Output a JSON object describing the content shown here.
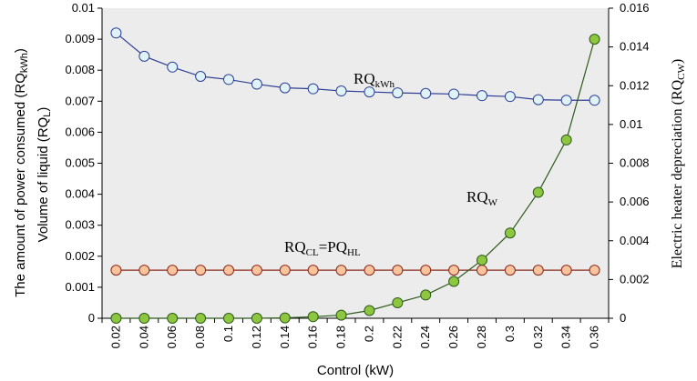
{
  "chart_data": {
    "type": "line",
    "xlabel": "Control (kW)",
    "y_left_label_part1": "The  amount  of  power  consumed  ",
    "y_left_label_part2": "(RQ",
    "y_left_label_sub": "kWh",
    "y_left_label_part3": ")",
    "y_left2_label_part1": "Volume of liquid (RQ",
    "y_left2_label_sub": "L",
    "y_left2_label_part2": ")",
    "y_right_label_part1": "Electric heater depreciation (RQ",
    "y_right_label_sub": "CW",
    "y_right_label_part2": ")",
    "x_ticks": [
      "0.02",
      "0.04",
      "0.06",
      "0.08",
      "0.1",
      "0.12",
      "0.14",
      "0.16",
      "0.18",
      "0.2",
      "0.22",
      "0.24",
      "0.26",
      "0.28",
      "0.3",
      "0.32",
      "0.34",
      "0.36"
    ],
    "x": [
      0.02,
      0.04,
      0.06,
      0.08,
      0.1,
      0.12,
      0.14,
      0.16,
      0.18,
      0.2,
      0.22,
      0.24,
      0.26,
      0.28,
      0.3,
      0.32,
      0.34,
      0.36
    ],
    "ylim_left": [
      0,
      0.01
    ],
    "yticks_left": [
      "0",
      "0.001",
      "0.002",
      "0.003",
      "0.004",
      "0.005",
      "0.006",
      "0.007",
      "0.008",
      "0.009",
      "0.01"
    ],
    "ylim_right": [
      0,
      0.016
    ],
    "yticks_right": [
      "0",
      "0.002",
      "0.004",
      "0.006",
      "0.008",
      "0.01",
      "0.012",
      "0.014",
      "0.016"
    ],
    "grid": false,
    "background": "#ececec",
    "series": [
      {
        "label_main": "RQ",
        "label_sub": "kWh",
        "axis": "left",
        "line_color": "#2e3f95",
        "marker_fill": "#dff3f6",
        "values": [
          0.0092,
          0.00845,
          0.0081,
          0.0078,
          0.0077,
          0.00755,
          0.00743,
          0.0074,
          0.00733,
          0.0073,
          0.00727,
          0.00725,
          0.00723,
          0.00718,
          0.00715,
          0.00705,
          0.00703,
          0.00703
        ]
      },
      {
        "label_main": "RQ",
        "label_sub": "CL",
        "label_mid": "=PQ",
        "label_sub2": "HL",
        "axis": "left",
        "line_color": "#8b2b1c",
        "marker_fill": "#f7c49e",
        "values": [
          0.00155,
          0.00155,
          0.00155,
          0.00155,
          0.00155,
          0.00155,
          0.00155,
          0.00155,
          0.00155,
          0.00155,
          0.00155,
          0.00155,
          0.00155,
          0.00155,
          0.00155,
          0.00155,
          0.00155,
          0.00155
        ]
      },
      {
        "label_main": "RQ",
        "label_sub": "W",
        "axis": "right",
        "line_color": "#2e5a1c",
        "marker_fill": "#8dc63f",
        "values": [
          0.0,
          0.0,
          0.0,
          0.0,
          0.0,
          0.0,
          2e-05,
          8e-05,
          0.00016,
          0.0004,
          0.0008,
          0.0012,
          0.0019,
          0.003,
          0.0044,
          0.0065,
          0.0092,
          0.0144
        ]
      }
    ]
  }
}
